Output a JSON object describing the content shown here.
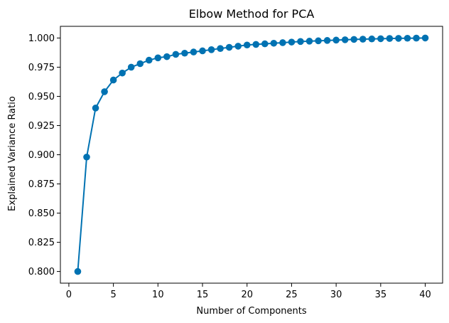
{
  "chart_data": {
    "type": "line",
    "title": "Elbow Method for PCA",
    "xlabel": "Number of Components",
    "ylabel": "Explained Variance Ratio",
    "xlim": [
      -0.95,
      41.95
    ],
    "ylim": [
      0.79,
      1.01
    ],
    "x_ticks": [
      0,
      5,
      10,
      15,
      20,
      25,
      30,
      35,
      40
    ],
    "y_ticks": [
      0.8,
      0.825,
      0.85,
      0.875,
      0.9,
      0.925,
      0.95,
      0.975,
      1.0
    ],
    "x_tick_labels": [
      "0",
      "5",
      "10",
      "15",
      "20",
      "25",
      "30",
      "35",
      "40"
    ],
    "y_tick_labels": [
      "0.800",
      "0.825",
      "0.850",
      "0.875",
      "0.900",
      "0.925",
      "0.950",
      "0.975",
      "1.000"
    ],
    "grid": false,
    "series": [
      {
        "color": "#0072b2",
        "marker": "circle",
        "x": [
          1,
          2,
          3,
          4,
          5,
          6,
          7,
          8,
          9,
          10,
          11,
          12,
          13,
          14,
          15,
          16,
          17,
          18,
          19,
          20,
          21,
          22,
          23,
          24,
          25,
          26,
          27,
          28,
          29,
          30,
          31,
          32,
          33,
          34,
          35,
          36,
          37,
          38,
          39,
          40
        ],
        "y": [
          0.8,
          0.898,
          0.94,
          0.954,
          0.964,
          0.97,
          0.975,
          0.978,
          0.981,
          0.983,
          0.984,
          0.986,
          0.987,
          0.988,
          0.989,
          0.99,
          0.991,
          0.992,
          0.993,
          0.994,
          0.9945,
          0.995,
          0.9955,
          0.996,
          0.9965,
          0.997,
          0.9973,
          0.9976,
          0.9979,
          0.9982,
          0.9985,
          0.9988,
          0.999,
          0.9992,
          0.9994,
          0.9996,
          0.9997,
          0.9998,
          0.9999,
          1.0
        ]
      }
    ]
  }
}
